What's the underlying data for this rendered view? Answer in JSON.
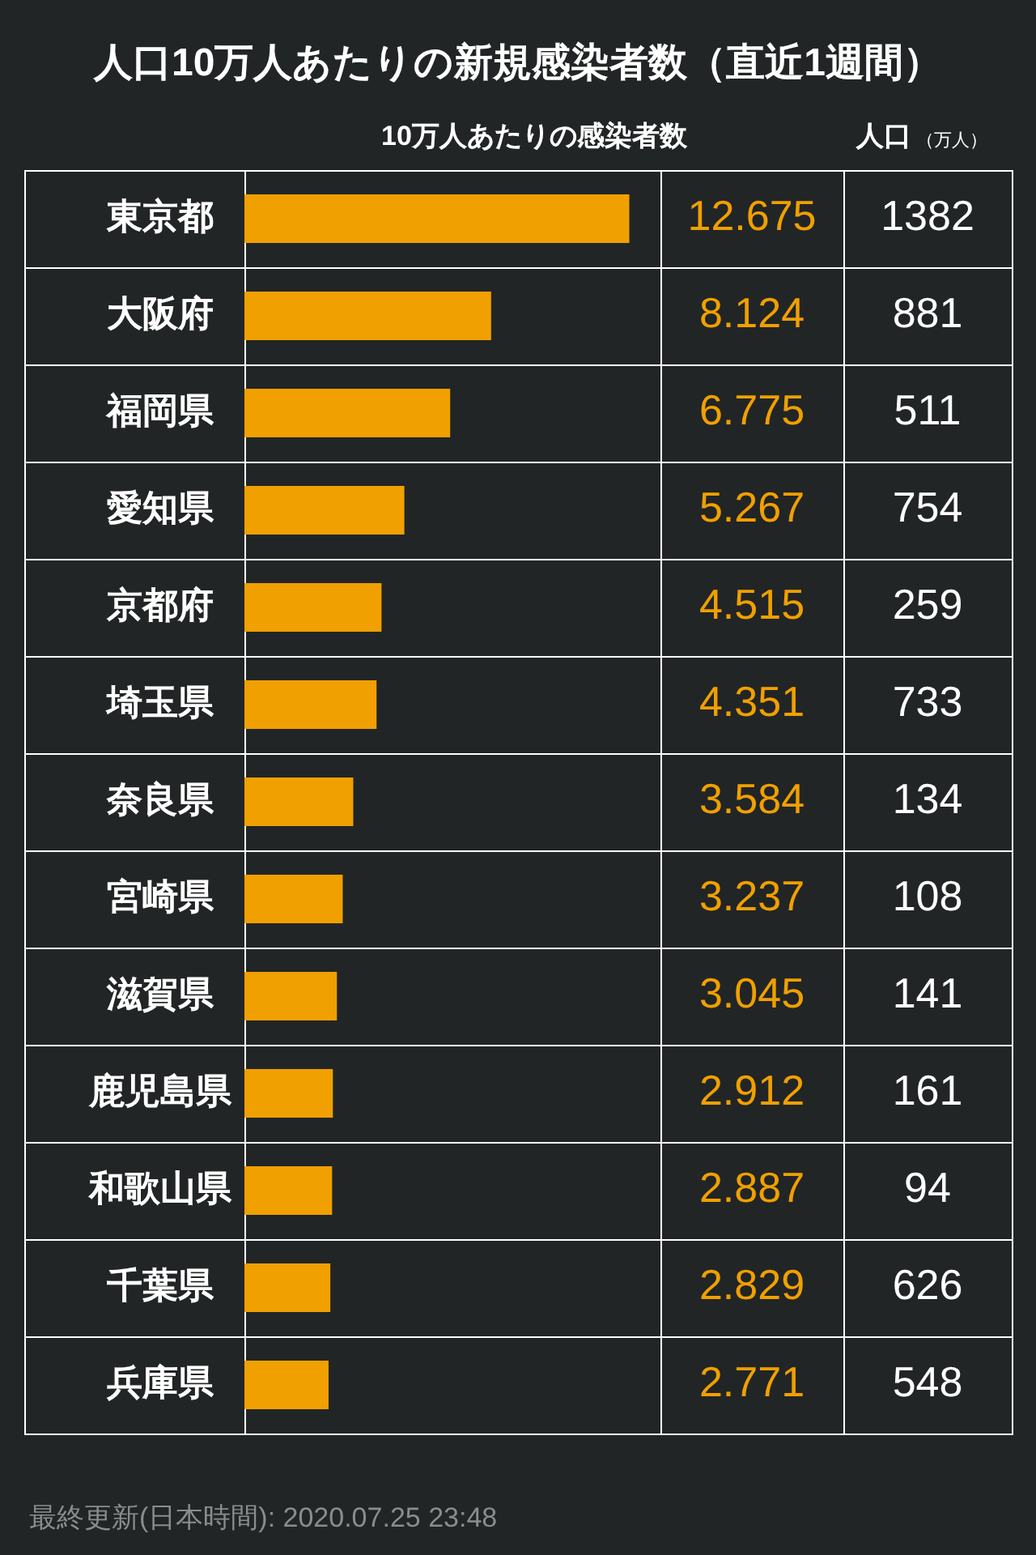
{
  "chart_data": {
    "type": "bar",
    "orientation": "horizontal",
    "title": "人口10万人あたりの新規感染者数（直近1週間）",
    "xlabel": "10万人あたりの感染者数",
    "categories": [
      "東京都",
      "大阪府",
      "福岡県",
      "愛知県",
      "京都府",
      "埼玉県",
      "奈良県",
      "宮崎県",
      "滋賀県",
      "鹿児島県",
      "和歌山県",
      "千葉県",
      "兵庫県"
    ],
    "series": [
      {
        "color": "#f0a000",
        "values": [
          12.675,
          8.124,
          6.775,
          5.267,
          4.515,
          4.351,
          3.584,
          3.237,
          3.045,
          2.912,
          2.887,
          2.829,
          2.771
        ]
      }
    ],
    "xlim": [
      0,
      13.7
    ],
    "tick_labels": "y",
    "grid": "y",
    "data_labels": true,
    "annotations": [
      "人口",
      "（万人）",
      "1382",
      "881",
      "511",
      "754",
      "259",
      "733",
      "134",
      "108",
      "141",
      "161",
      "94",
      "626",
      "548",
      "最終更新(日本時間): 2020.07.25 23:48"
    ]
  }
}
